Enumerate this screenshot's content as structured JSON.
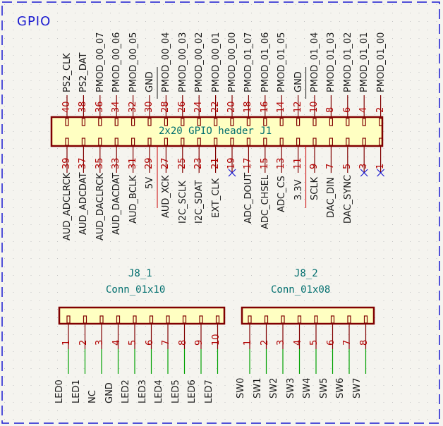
{
  "sheet": {
    "title": "GPIO",
    "border_color": "#1a1ad0",
    "background": "#f5f4ef",
    "grid_color": "#bdbdbd"
  },
  "colors": {
    "body_fill": "#ffffc2",
    "body_stroke": "#800000",
    "pin_line": "#800000",
    "pin_number": "#b00000",
    "net_label": "#1a1a1a",
    "wire": "#00a000",
    "no_connect": "#1a1ad0",
    "ref_text": "#006e6e",
    "power_line": "#cc0000"
  },
  "j1": {
    "reference": "J1",
    "value": "2x20 GPIO header",
    "label": "2x20 GPIO header    J1",
    "top_pins": [
      {
        "num": "40",
        "net": "PS2_CLK"
      },
      {
        "num": "38",
        "net": "PS2_DAT"
      },
      {
        "num": "36",
        "net": "PMOD_00_07"
      },
      {
        "num": "34",
        "net": "PMOD_00_06"
      },
      {
        "num": "32",
        "net": "PMOD_00_05"
      },
      {
        "num": "30",
        "net": "GND"
      },
      {
        "num": "28",
        "net": "PMOD_00_04"
      },
      {
        "num": "26",
        "net": "PMOD_00_03"
      },
      {
        "num": "24",
        "net": "PMOD_00_02"
      },
      {
        "num": "22",
        "net": "PMOD_00_01"
      },
      {
        "num": "20",
        "net": "PMOD_00_00"
      },
      {
        "num": "18",
        "net": "PMOD_01_07"
      },
      {
        "num": "16",
        "net": "PMOD_01_06"
      },
      {
        "num": "14",
        "net": "PMOD_01_05"
      },
      {
        "num": "12",
        "net": "GND"
      },
      {
        "num": "10",
        "net": "PMOD_01_04"
      },
      {
        "num": "8",
        "net": "PMOD_01_03"
      },
      {
        "num": "6",
        "net": "PMOD_01_02"
      },
      {
        "num": "4",
        "net": "PMOD_01_01"
      },
      {
        "num": "2",
        "net": "PMOD_01_00"
      }
    ],
    "bottom_pins": [
      {
        "num": "39",
        "net": "AUD_ADCLRCK"
      },
      {
        "num": "37",
        "net": "AUD_ADCDAT"
      },
      {
        "num": "35",
        "net": "AUD_DACLRCK"
      },
      {
        "num": "33",
        "net": "AUD_DACDAT"
      },
      {
        "num": "31",
        "net": "AUD_BCLK"
      },
      {
        "num": "29",
        "net": "5V"
      },
      {
        "num": "27",
        "net": "AUD_XCK"
      },
      {
        "num": "25",
        "net": "I2C_SCLK"
      },
      {
        "num": "23",
        "net": "I2C_SDAT"
      },
      {
        "num": "21",
        "net": "EXT_CLK"
      },
      {
        "num": "19",
        "net": "",
        "no_connect": true
      },
      {
        "num": "17",
        "net": "ADC_DOUT"
      },
      {
        "num": "15",
        "net": "ADC_CHSEL"
      },
      {
        "num": "13",
        "net": "ADC_CS"
      },
      {
        "num": "11",
        "net": "3.3V"
      },
      {
        "num": "9",
        "net": "SCLK"
      },
      {
        "num": "7",
        "net": "DAC_DIN"
      },
      {
        "num": "5",
        "net": "DAC_SYNC"
      },
      {
        "num": "3",
        "net": "",
        "no_connect": true
      },
      {
        "num": "1",
        "net": "",
        "no_connect": true
      }
    ]
  },
  "j8_1": {
    "reference": "J8_1",
    "value": "Conn_01x10",
    "pins": [
      {
        "num": "1",
        "net": "LED0"
      },
      {
        "num": "2",
        "net": "LED1"
      },
      {
        "num": "3",
        "net": "NC"
      },
      {
        "num": "4",
        "net": "GND"
      },
      {
        "num": "5",
        "net": "LED2"
      },
      {
        "num": "6",
        "net": "LED3"
      },
      {
        "num": "7",
        "net": "LED4"
      },
      {
        "num": "8",
        "net": "LED5"
      },
      {
        "num": "9",
        "net": "LED6"
      },
      {
        "num": "10",
        "net": "LED7"
      }
    ]
  },
  "j8_2": {
    "reference": "J8_2",
    "value": "Conn_01x08",
    "pins": [
      {
        "num": "1",
        "net": "SW0"
      },
      {
        "num": "2",
        "net": "SW1"
      },
      {
        "num": "3",
        "net": "SW2"
      },
      {
        "num": "4",
        "net": "SW3"
      },
      {
        "num": "5",
        "net": "SW4"
      },
      {
        "num": "6",
        "net": "SW5"
      },
      {
        "num": "7",
        "net": "SW6"
      },
      {
        "num": "8",
        "net": "SW7"
      }
    ]
  }
}
